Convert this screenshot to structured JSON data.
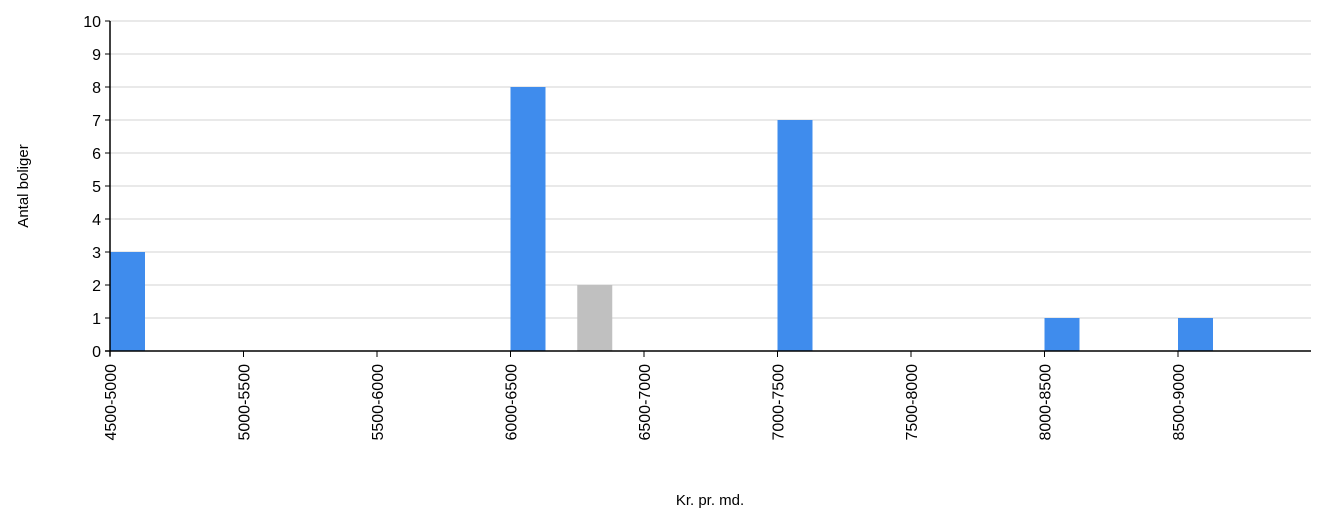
{
  "chart_data": {
    "type": "bar",
    "title": "",
    "xlabel": "Kr. pr. md.",
    "ylabel": "Antal boliger",
    "categories": [
      "4500-5000",
      "5000-5500",
      "5500-6000",
      "6000-6500",
      "6500-7000",
      "7000-7500",
      "7500-8000",
      "8000-8500",
      "8500-9000"
    ],
    "series": [
      {
        "color": "#3f8ced",
        "values": [
          3,
          0,
          0,
          8,
          0,
          7,
          0,
          1,
          1
        ]
      },
      {
        "color": "#c0c0c0",
        "values": [
          0,
          0,
          0,
          0,
          2,
          0,
          0,
          0,
          0
        ]
      }
    ],
    "bar_positions": [
      {
        "series": 0,
        "x": 4500,
        "value": 3
      },
      {
        "series": 0,
        "x": 6000,
        "value": 8
      },
      {
        "series": 1,
        "x": 6250,
        "value": 2
      },
      {
        "series": 0,
        "x": 7000,
        "value": 7
      },
      {
        "series": 0,
        "x": 8000,
        "value": 1
      },
      {
        "series": 0,
        "x": 8500,
        "value": 1
      }
    ],
    "x_range": [
      4500,
      9000
    ],
    "ylim": [
      0,
      10
    ],
    "y_ticks": [
      0,
      1,
      2,
      3,
      4,
      5,
      6,
      7,
      8,
      9,
      10
    ],
    "grid": true,
    "legend": "none"
  }
}
